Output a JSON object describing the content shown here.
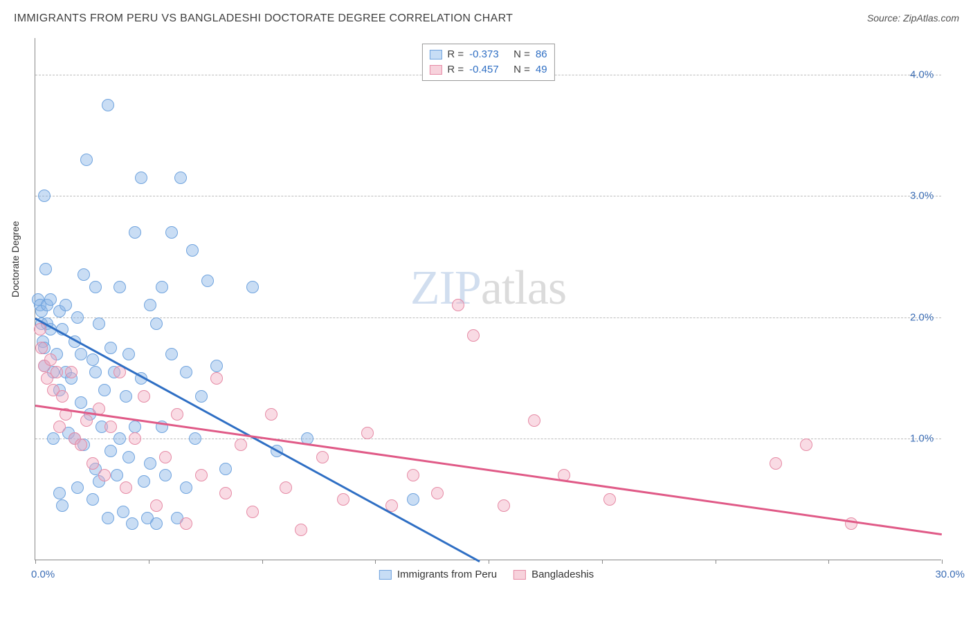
{
  "header": {
    "title": "IMMIGRANTS FROM PERU VS BANGLADESHI DOCTORATE DEGREE CORRELATION CHART",
    "source_prefix": "Source: ",
    "source_name": "ZipAtlas.com"
  },
  "axes": {
    "ylabel": "Doctorate Degree",
    "xlim": [
      0,
      30
    ],
    "ylim": [
      0,
      4.3
    ],
    "xtick_positions": [
      0,
      3.75,
      7.5,
      11.25,
      15,
      18.75,
      22.5,
      26.25,
      30
    ],
    "ytick_grid": [
      1.0,
      2.0,
      3.0,
      4.0
    ],
    "ytick_labels": [
      "1.0%",
      "2.0%",
      "3.0%",
      "4.0%"
    ],
    "xmin_label": "0.0%",
    "xmax_label": "30.0%",
    "grid_color": "#bbbbbb",
    "axis_color": "#888888",
    "tick_label_color": "#3b6db5"
  },
  "watermark": {
    "zip": "ZIP",
    "atlas": "atlas"
  },
  "legend_top": {
    "rows": [
      {
        "swatch_fill": "#c7ddf5",
        "swatch_stroke": "#6fa3de",
        "r_label": "R =",
        "r_val": "-0.373",
        "n_label": "N =",
        "n_val": "86"
      },
      {
        "swatch_fill": "#f7d2dc",
        "swatch_stroke": "#e68aa5",
        "r_label": "R =",
        "r_val": "-0.457",
        "n_label": "N =",
        "n_val": "49"
      }
    ],
    "val_color": "#2f6fc4",
    "label_color": "#404040"
  },
  "legend_bottom": {
    "items": [
      {
        "swatch_fill": "#c7ddf5",
        "swatch_stroke": "#6fa3de",
        "label": "Immigrants from Peru"
      },
      {
        "swatch_fill": "#f7d2dc",
        "swatch_stroke": "#e68aa5",
        "label": "Bangladeshis"
      }
    ]
  },
  "series": [
    {
      "name": "peru",
      "color_fill": "rgba(135,180,230,0.45)",
      "color_stroke": "#6fa3de",
      "marker_radius": 9,
      "trend": {
        "x1": 0,
        "y1": 2.0,
        "x2": 14.7,
        "y2": 0.0,
        "color": "#2f6fc4",
        "width": 2.5
      },
      "points": [
        [
          0.1,
          2.15
        ],
        [
          0.15,
          2.1
        ],
        [
          0.2,
          2.05
        ],
        [
          0.2,
          1.95
        ],
        [
          0.25,
          1.8
        ],
        [
          0.3,
          1.75
        ],
        [
          0.3,
          1.6
        ],
        [
          0.3,
          3.0
        ],
        [
          0.35,
          2.4
        ],
        [
          0.4,
          2.1
        ],
        [
          0.4,
          1.95
        ],
        [
          0.5,
          2.15
        ],
        [
          0.5,
          1.9
        ],
        [
          0.6,
          1.55
        ],
        [
          0.6,
          1.0
        ],
        [
          0.7,
          1.7
        ],
        [
          0.8,
          2.05
        ],
        [
          0.8,
          1.4
        ],
        [
          0.8,
          0.55
        ],
        [
          0.9,
          1.9
        ],
        [
          0.9,
          0.45
        ],
        [
          1.0,
          2.1
        ],
        [
          1.0,
          1.55
        ],
        [
          1.1,
          1.05
        ],
        [
          1.2,
          1.5
        ],
        [
          1.3,
          1.8
        ],
        [
          1.3,
          1.0
        ],
        [
          1.4,
          2.0
        ],
        [
          1.4,
          0.6
        ],
        [
          1.5,
          1.7
        ],
        [
          1.5,
          1.3
        ],
        [
          1.6,
          2.35
        ],
        [
          1.6,
          0.95
        ],
        [
          1.7,
          3.3
        ],
        [
          1.8,
          1.2
        ],
        [
          1.9,
          1.65
        ],
        [
          1.9,
          0.5
        ],
        [
          2.0,
          2.25
        ],
        [
          2.0,
          1.55
        ],
        [
          2.0,
          0.75
        ],
        [
          2.1,
          1.95
        ],
        [
          2.1,
          0.65
        ],
        [
          2.2,
          1.1
        ],
        [
          2.3,
          1.4
        ],
        [
          2.4,
          3.75
        ],
        [
          2.4,
          0.35
        ],
        [
          2.5,
          1.75
        ],
        [
          2.5,
          0.9
        ],
        [
          2.6,
          1.55
        ],
        [
          2.7,
          0.7
        ],
        [
          2.8,
          2.25
        ],
        [
          2.8,
          1.0
        ],
        [
          2.9,
          0.4
        ],
        [
          3.0,
          1.35
        ],
        [
          3.1,
          1.7
        ],
        [
          3.1,
          0.85
        ],
        [
          3.2,
          0.3
        ],
        [
          3.3,
          2.7
        ],
        [
          3.3,
          1.1
        ],
        [
          3.5,
          3.15
        ],
        [
          3.5,
          1.5
        ],
        [
          3.6,
          0.65
        ],
        [
          3.7,
          0.35
        ],
        [
          3.8,
          2.1
        ],
        [
          3.8,
          0.8
        ],
        [
          4.0,
          1.95
        ],
        [
          4.0,
          0.3
        ],
        [
          4.2,
          2.25
        ],
        [
          4.2,
          1.1
        ],
        [
          4.3,
          0.7
        ],
        [
          4.5,
          2.7
        ],
        [
          4.5,
          1.7
        ],
        [
          4.7,
          0.35
        ],
        [
          4.8,
          3.15
        ],
        [
          5.0,
          1.55
        ],
        [
          5.0,
          0.6
        ],
        [
          5.2,
          2.55
        ],
        [
          5.3,
          1.0
        ],
        [
          5.5,
          1.35
        ],
        [
          5.7,
          2.3
        ],
        [
          6.0,
          1.6
        ],
        [
          6.3,
          0.75
        ],
        [
          7.2,
          2.25
        ],
        [
          8.0,
          0.9
        ],
        [
          9.0,
          1.0
        ],
        [
          12.5,
          0.5
        ]
      ]
    },
    {
      "name": "bangladeshi",
      "color_fill": "rgba(240,170,190,0.42)",
      "color_stroke": "#e68aa5",
      "marker_radius": 9,
      "trend": {
        "x1": 0,
        "y1": 1.28,
        "x2": 30,
        "y2": 0.22,
        "color": "#e05a87",
        "width": 2.5
      },
      "points": [
        [
          0.15,
          1.9
        ],
        [
          0.2,
          1.75
        ],
        [
          0.3,
          1.6
        ],
        [
          0.4,
          1.5
        ],
        [
          0.5,
          1.65
        ],
        [
          0.6,
          1.4
        ],
        [
          0.7,
          1.55
        ],
        [
          0.8,
          1.1
        ],
        [
          0.9,
          1.35
        ],
        [
          1.0,
          1.2
        ],
        [
          1.2,
          1.55
        ],
        [
          1.3,
          1.0
        ],
        [
          1.5,
          0.95
        ],
        [
          1.7,
          1.15
        ],
        [
          1.9,
          0.8
        ],
        [
          2.1,
          1.25
        ],
        [
          2.3,
          0.7
        ],
        [
          2.5,
          1.1
        ],
        [
          2.8,
          1.55
        ],
        [
          3.0,
          0.6
        ],
        [
          3.3,
          1.0
        ],
        [
          3.6,
          1.35
        ],
        [
          4.0,
          0.45
        ],
        [
          4.3,
          0.85
        ],
        [
          4.7,
          1.2
        ],
        [
          5.0,
          0.3
        ],
        [
          5.5,
          0.7
        ],
        [
          6.0,
          1.5
        ],
        [
          6.3,
          0.55
        ],
        [
          6.8,
          0.95
        ],
        [
          7.2,
          0.4
        ],
        [
          7.8,
          1.2
        ],
        [
          8.3,
          0.6
        ],
        [
          8.8,
          0.25
        ],
        [
          9.5,
          0.85
        ],
        [
          10.2,
          0.5
        ],
        [
          11.0,
          1.05
        ],
        [
          11.8,
          0.45
        ],
        [
          12.5,
          0.7
        ],
        [
          13.3,
          0.55
        ],
        [
          14.0,
          2.1
        ],
        [
          14.5,
          1.85
        ],
        [
          15.5,
          0.45
        ],
        [
          16.5,
          1.15
        ],
        [
          17.5,
          0.7
        ],
        [
          19.0,
          0.5
        ],
        [
          24.5,
          0.8
        ],
        [
          25.5,
          0.95
        ],
        [
          27.0,
          0.3
        ]
      ]
    }
  ]
}
